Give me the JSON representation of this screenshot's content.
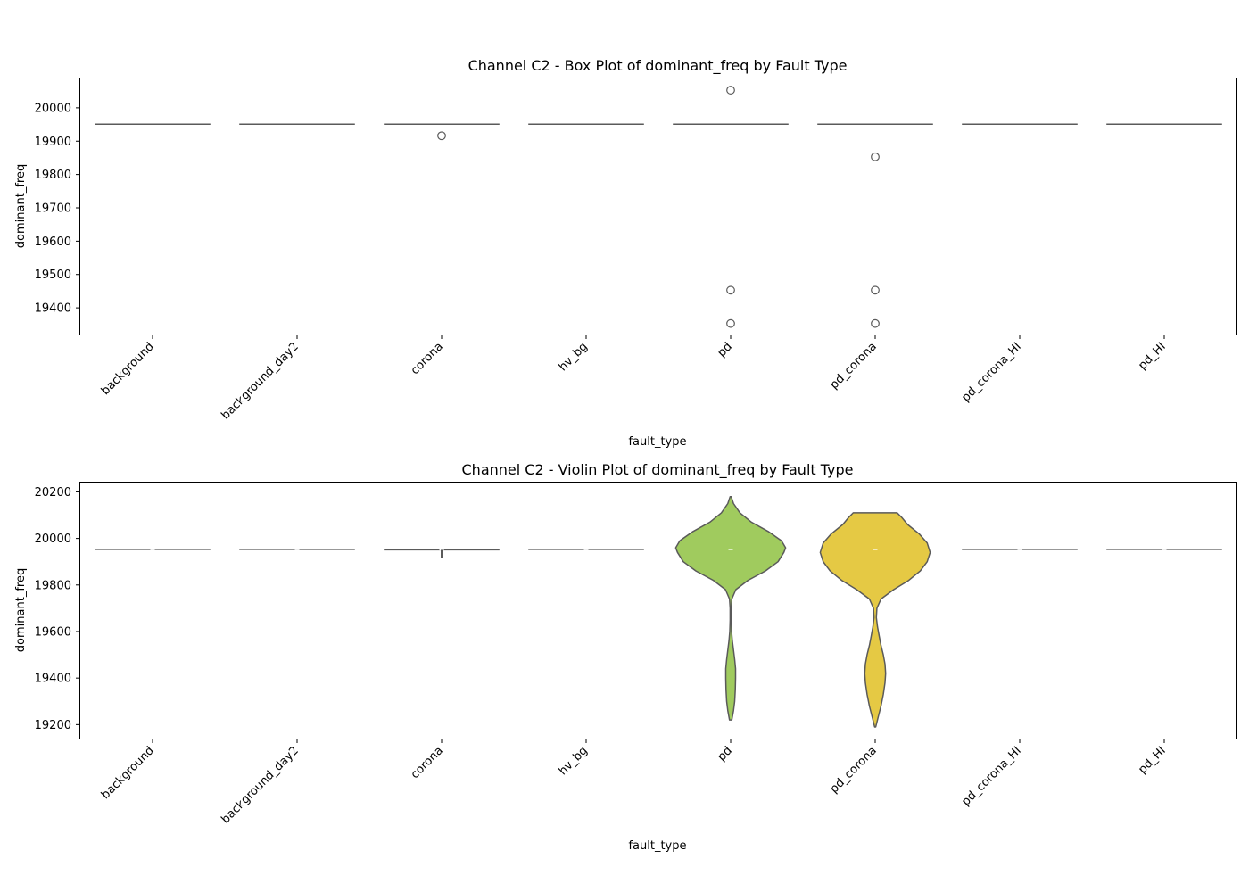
{
  "chart_data": [
    {
      "type": "box",
      "title": "Channel C2 - Box Plot of dominant_freq by Fault Type",
      "xlabel": "fault_type",
      "ylabel": "dominant_freq",
      "categories": [
        "background",
        "background_day2",
        "corona",
        "hv_bg",
        "pd",
        "pd_corona",
        "pd_corona_HI",
        "pd_HI"
      ],
      "yticks": [
        19400,
        19500,
        19600,
        19700,
        19800,
        19900,
        20000
      ],
      "ylim": [
        19320,
        20088
      ],
      "median_all": 19951,
      "outliers": [
        {
          "category": "corona",
          "values": [
            19916
          ]
        },
        {
          "category": "pd",
          "values": [
            20053,
            19453,
            19353
          ]
        },
        {
          "category": "pd_corona",
          "values": [
            19853,
            19453,
            19353
          ]
        }
      ],
      "grid": false,
      "legend": "none"
    },
    {
      "type": "violin",
      "title": "Channel C2 - Violin Plot of dominant_freq by Fault Type",
      "xlabel": "fault_type",
      "ylabel": "dominant_freq",
      "categories": [
        "background",
        "background_day2",
        "corona",
        "hv_bg",
        "pd",
        "pd_corona",
        "pd_corona_HI",
        "pd_HI"
      ],
      "yticks": [
        19200,
        19400,
        19600,
        19800,
        20000,
        20200
      ],
      "ylim": [
        19140,
        20240
      ],
      "median_all": 19953,
      "flat": [
        {
          "category": "background",
          "value": 19953
        },
        {
          "category": "background_day2",
          "value": 19953
        },
        {
          "category": "corona",
          "value": 19951,
          "low": 19916
        },
        {
          "category": "hv_bg",
          "value": 19953
        },
        {
          "category": "pd_corona_HI",
          "value": 19953
        },
        {
          "category": "pd_HI",
          "value": 19953
        }
      ],
      "violins": [
        {
          "category": "pd",
          "color": "#a0cb5e",
          "median": 19953,
          "profile": [
            [
              19220,
              0.02
            ],
            [
              19260,
              0.05
            ],
            [
              19300,
              0.07
            ],
            [
              19350,
              0.08
            ],
            [
              19400,
              0.085
            ],
            [
              19440,
              0.085
            ],
            [
              19480,
              0.07
            ],
            [
              19520,
              0.05
            ],
            [
              19560,
              0.03
            ],
            [
              19600,
              0.015
            ],
            [
              19650,
              0.01
            ],
            [
              19700,
              0.01
            ],
            [
              19740,
              0.02
            ],
            [
              19780,
              0.09
            ],
            [
              19820,
              0.3
            ],
            [
              19860,
              0.6
            ],
            [
              19900,
              0.82
            ],
            [
              19940,
              0.92
            ],
            [
              19960,
              0.95
            ],
            [
              19990,
              0.88
            ],
            [
              20030,
              0.65
            ],
            [
              20070,
              0.36
            ],
            [
              20110,
              0.16
            ],
            [
              20150,
              0.05
            ],
            [
              20180,
              0.01
            ]
          ]
        },
        {
          "category": "pd_corona",
          "color": "#e5c944",
          "median": 19953,
          "profile": [
            [
              19190,
              0.01
            ],
            [
              19230,
              0.05
            ],
            [
              19280,
              0.1
            ],
            [
              19330,
              0.14
            ],
            [
              19380,
              0.17
            ],
            [
              19420,
              0.18
            ],
            [
              19460,
              0.17
            ],
            [
              19500,
              0.14
            ],
            [
              19540,
              0.1
            ],
            [
              19580,
              0.07
            ],
            [
              19620,
              0.04
            ],
            [
              19660,
              0.02
            ],
            [
              19700,
              0.03
            ],
            [
              19740,
              0.1
            ],
            [
              19780,
              0.32
            ],
            [
              19820,
              0.58
            ],
            [
              19860,
              0.78
            ],
            [
              19900,
              0.9
            ],
            [
              19940,
              0.95
            ],
            [
              19980,
              0.9
            ],
            [
              20020,
              0.76
            ],
            [
              20060,
              0.56
            ],
            [
              20090,
              0.46
            ],
            [
              20110,
              0.38
            ]
          ]
        }
      ],
      "grid": false,
      "legend": "none"
    }
  ]
}
